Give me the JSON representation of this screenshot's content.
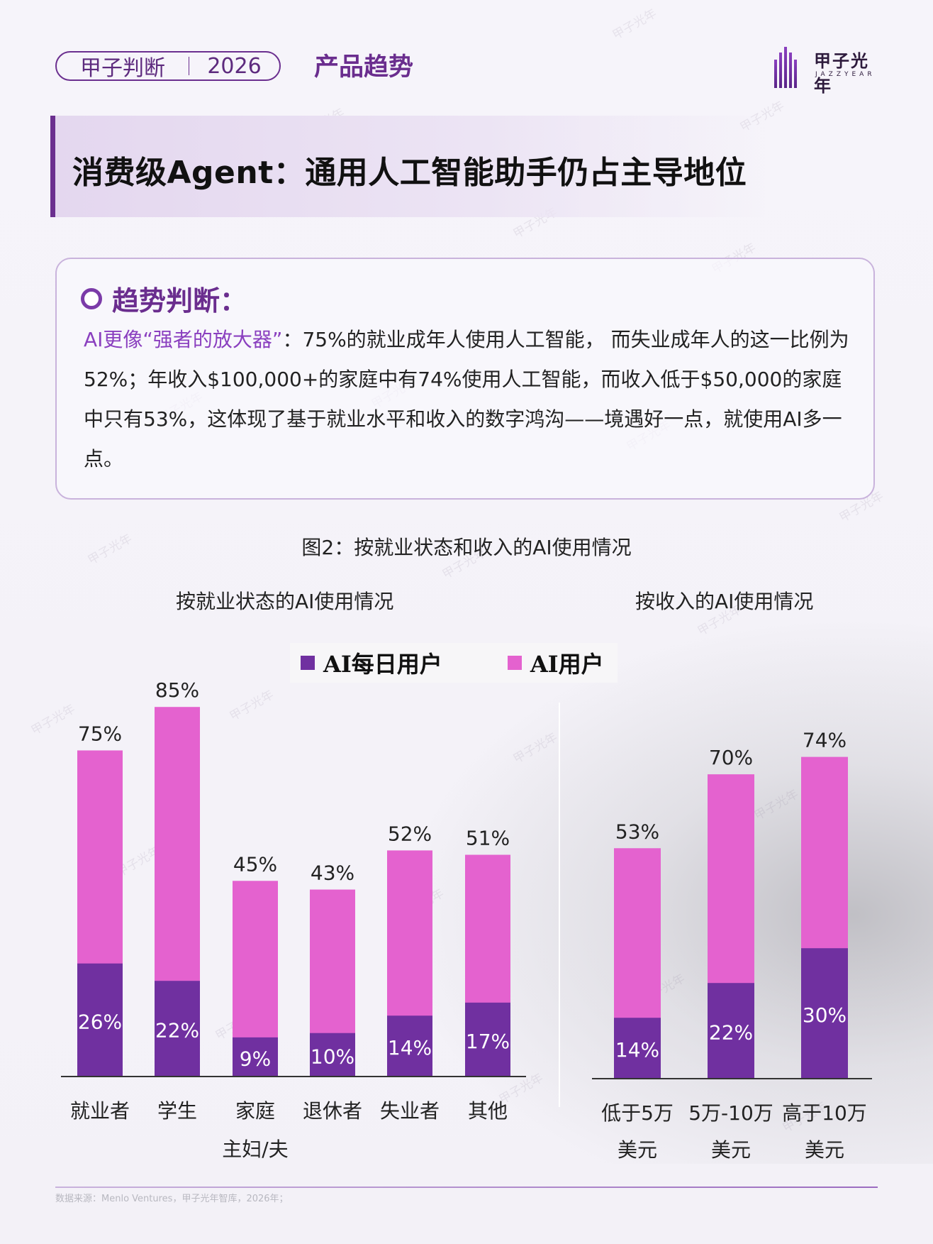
{
  "header": {
    "series_label": "甲子判断",
    "year": "2026",
    "section": "产品趋势"
  },
  "logo": {
    "cn": "甲子光年",
    "en": "JAZZYEAR"
  },
  "watermark": "甲子光年",
  "banner": {
    "title": "消费级Agent：通用人工智能助手仍占主导地位"
  },
  "trend": {
    "heading": "趋势判断：",
    "highlight": "AI更像“强者的放大器”",
    "body": "：75%的就业成年人使用人工智能， 而失业成年人的这一比例为52%；年收入$100,000+的家庭中有74%使用人工智能，而收入低于$50,000的家庭中只有53%，这体现了基于就业水平和收入的数字鸿沟——境遇好一点，就使用AI多一点。"
  },
  "figure": {
    "title": "图2：按就业状态和收入的AI使用情况"
  },
  "chart_data": [
    {
      "type": "bar",
      "stacked": "overlay",
      "title": "按就业状态的AI使用情况",
      "categories": [
        "就业者",
        "学生",
        "家庭主妇/夫",
        "退休者",
        "失业者",
        "其他"
      ],
      "category_lines": [
        [
          "就业者"
        ],
        [
          "学生"
        ],
        [
          "家庭",
          "主妇/夫"
        ],
        [
          "退休者"
        ],
        [
          "失业者"
        ],
        [
          "其他"
        ]
      ],
      "series": [
        {
          "name": "AI每日用户",
          "values": [
            26,
            22,
            9,
            10,
            14,
            17
          ],
          "labels": [
            "26%",
            "22%",
            "9%",
            "10%",
            "14%",
            "17%"
          ],
          "color": "#7030a0"
        },
        {
          "name": "AI用户",
          "values": [
            75,
            85,
            45,
            43,
            52,
            51
          ],
          "labels": [
            "75%",
            "85%",
            "45%",
            "43%",
            "52%",
            "51%"
          ],
          "color": "#e462cf"
        }
      ],
      "ylim": [
        0,
        85
      ]
    },
    {
      "type": "bar",
      "stacked": "overlay",
      "title": "按收入的AI使用情况",
      "categories": [
        "低于5万美元",
        "5万-10万美元",
        "高于10万美元"
      ],
      "category_lines": [
        [
          "低于5万",
          "美元"
        ],
        [
          "5万-10万",
          "美元"
        ],
        [
          "高于10万",
          "美元"
        ]
      ],
      "series": [
        {
          "name": "AI每日用户",
          "values": [
            14,
            22,
            30
          ],
          "labels": [
            "14%",
            "22%",
            "30%"
          ],
          "color": "#7030a0"
        },
        {
          "name": "AI用户",
          "values": [
            53,
            70,
            74
          ],
          "labels": [
            "53%",
            "70%",
            "74%"
          ],
          "color": "#e462cf"
        }
      ],
      "ylim": [
        0,
        85
      ]
    }
  ],
  "legend": [
    {
      "name": "AI每日用户",
      "color": "#7030a0"
    },
    {
      "name": "AI用户",
      "color": "#e462cf"
    }
  ],
  "footer": {
    "source": "数据来源：Menlo Ventures，甲子光年智库，2026年；"
  }
}
